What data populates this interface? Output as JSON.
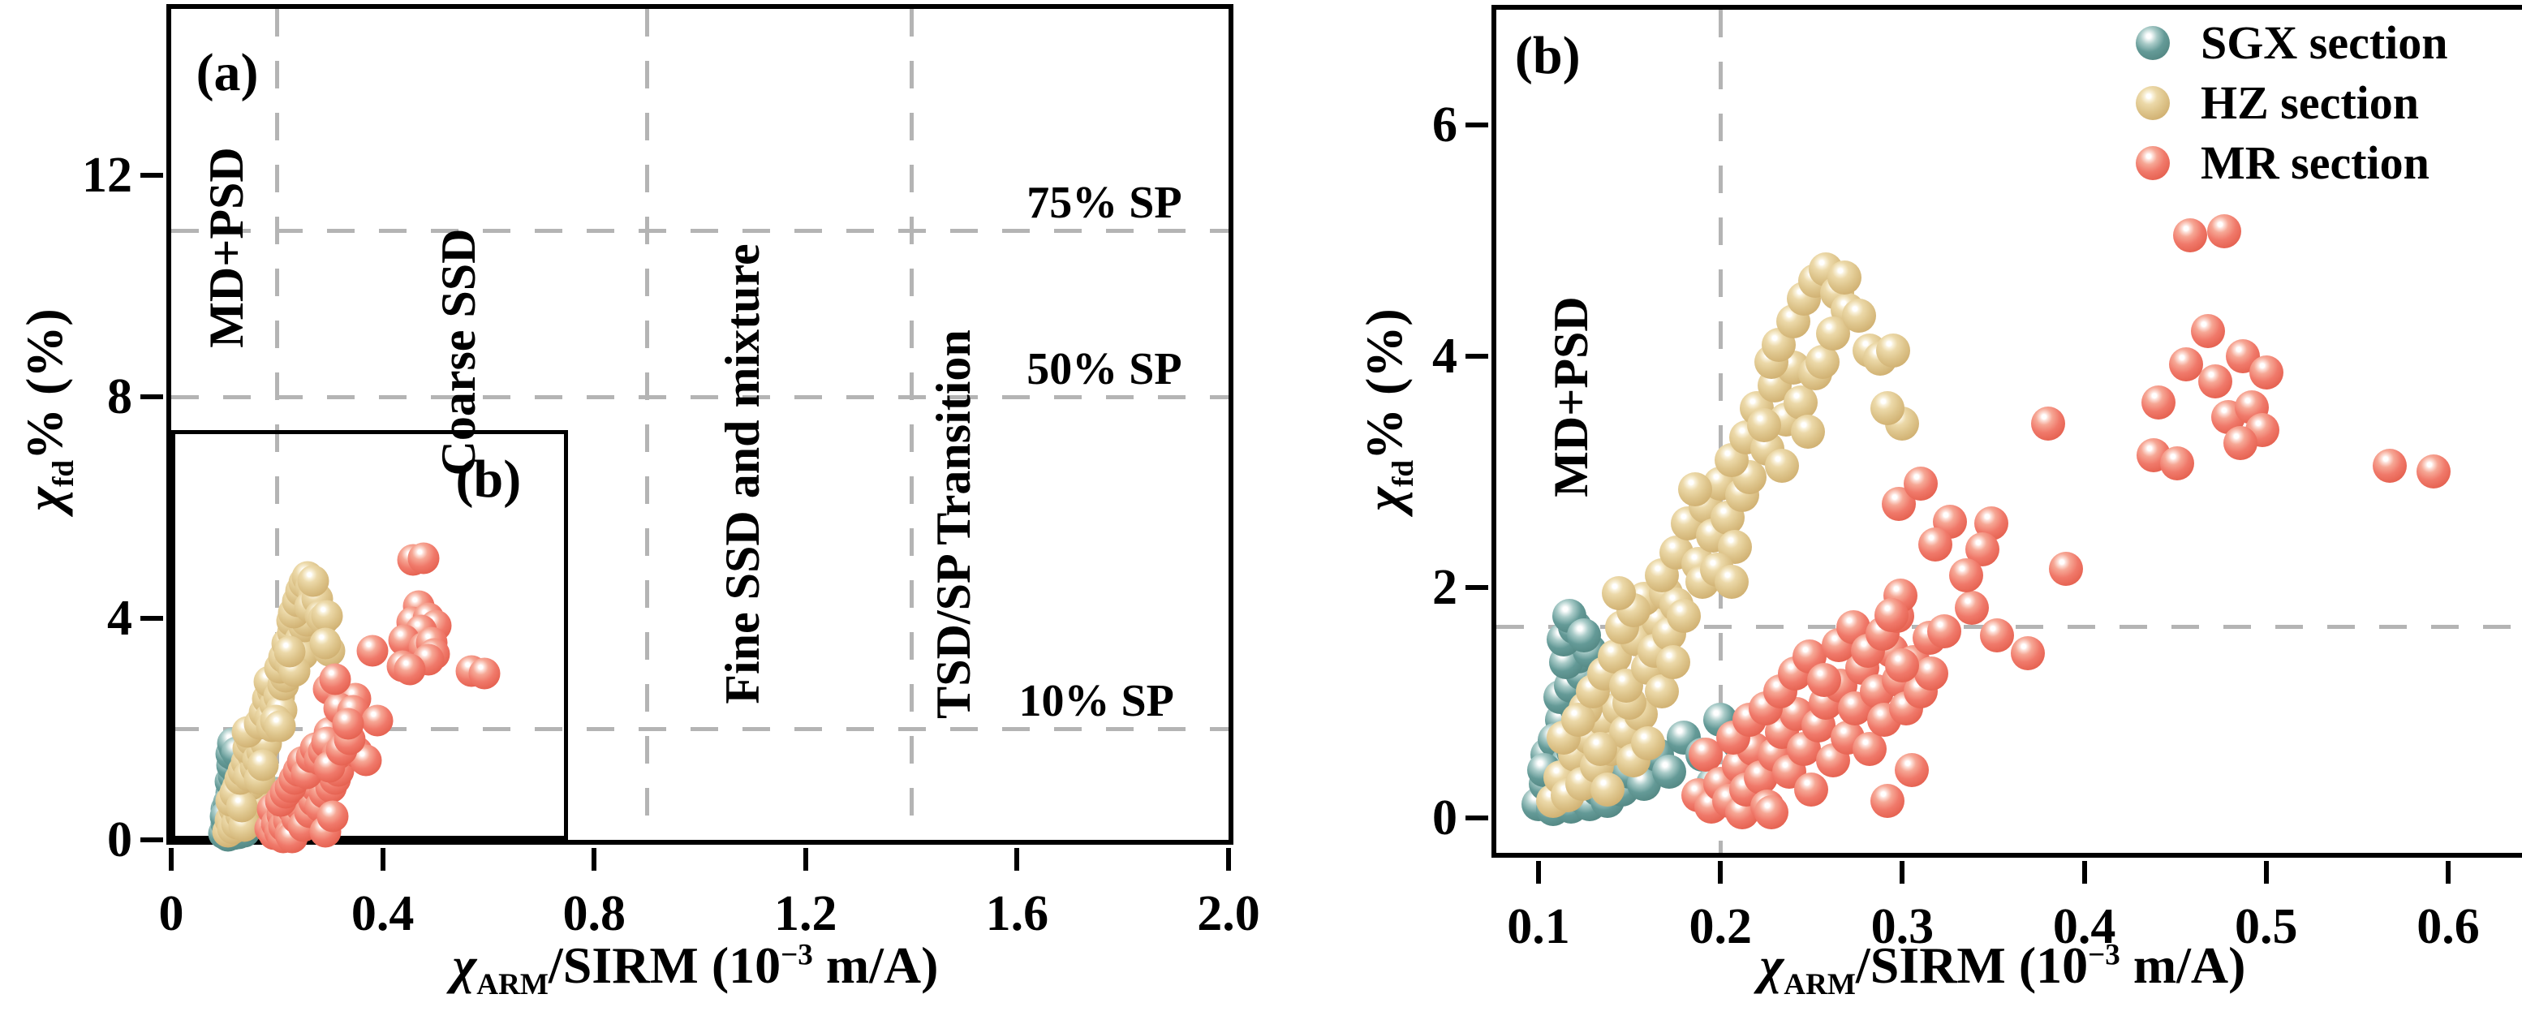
{
  "figure": {
    "type_note": "two-panel scatter figure, panel b is zoom of inset box in panel a",
    "colors": {
      "frame": "#000000",
      "dashed_line": "#b4b4b4",
      "background": "#ffffff"
    }
  },
  "chart_data": {
    "type": "scatter",
    "xlabel": {
      "chi": "χ",
      "sub": "ARM",
      "mid": "/SIRM (10",
      "sup": "−3",
      "end": " m/A)"
    },
    "ylabel": {
      "chi": "χ",
      "sub": "fd",
      "end": "% (%)"
    },
    "legend": {
      "position": "top-right of panel b",
      "entries": [
        {
          "key": "sgx",
          "label": "SGX section",
          "color": "#649a97"
        },
        {
          "key": "hz",
          "label": "HZ section",
          "color": "#dec58c"
        },
        {
          "key": "mr",
          "label": "MR section",
          "color": "#f0796a"
        }
      ]
    },
    "series": [
      {
        "key": "sgx",
        "name": "SGX section",
        "color": "#649a97",
        "points": [
          [
            0.1,
            0.12
          ],
          [
            0.104,
            0.3
          ],
          [
            0.108,
            0.08
          ],
          [
            0.11,
            0.45
          ],
          [
            0.112,
            0.22
          ],
          [
            0.115,
            0.6
          ],
          [
            0.118,
            0.1
          ],
          [
            0.118,
            0.38
          ],
          [
            0.12,
            0.75
          ],
          [
            0.122,
            0.2
          ],
          [
            0.124,
            0.52
          ],
          [
            0.126,
            0.9
          ],
          [
            0.127,
            0.33
          ],
          [
            0.128,
            0.12
          ],
          [
            0.13,
            0.64
          ],
          [
            0.132,
            0.42
          ],
          [
            0.133,
            0.25
          ],
          [
            0.135,
            0.8
          ],
          [
            0.136,
            0.55
          ],
          [
            0.138,
            0.15
          ],
          [
            0.14,
            0.35
          ],
          [
            0.142,
            0.68
          ],
          [
            0.144,
            0.48
          ],
          [
            0.146,
            0.25
          ],
          [
            0.148,
            0.58
          ],
          [
            0.15,
            0.4
          ],
          [
            0.105,
            0.55
          ],
          [
            0.113,
            0.85
          ],
          [
            0.121,
            0.95
          ],
          [
            0.109,
            0.68
          ],
          [
            0.116,
            0.48
          ],
          [
            0.125,
            0.7
          ],
          [
            0.131,
            0.95
          ],
          [
            0.137,
            0.92
          ],
          [
            0.103,
            0.42
          ],
          [
            0.119,
            0.58
          ],
          [
            0.112,
            1.05
          ],
          [
            0.118,
            1.15
          ],
          [
            0.124,
            1.25
          ],
          [
            0.13,
            1.1
          ],
          [
            0.136,
            1.3
          ],
          [
            0.122,
            1.4
          ],
          [
            0.115,
            1.35
          ],
          [
            0.128,
            1.45
          ],
          [
            0.134,
            1.18
          ],
          [
            0.141,
            1.05
          ],
          [
            0.114,
            1.55
          ],
          [
            0.12,
            1.65
          ],
          [
            0.117,
            1.75
          ],
          [
            0.125,
            1.58
          ],
          [
            0.158,
            0.3
          ],
          [
            0.165,
            0.55
          ],
          [
            0.172,
            0.4
          ],
          [
            0.18,
            0.7
          ],
          [
            0.19,
            0.55
          ],
          [
            0.2,
            0.85
          ],
          [
            0.21,
            0.65
          ],
          [
            0.196,
            0.3
          ]
        ]
      },
      {
        "key": "hz",
        "name": "HZ section",
        "color": "#dec58c",
        "points": [
          [
            0.108,
            0.15
          ],
          [
            0.112,
            0.35
          ],
          [
            0.116,
            0.2
          ],
          [
            0.12,
            0.55
          ],
          [
            0.124,
            0.3
          ],
          [
            0.128,
            0.7
          ],
          [
            0.132,
            0.45
          ],
          [
            0.136,
            0.85
          ],
          [
            0.14,
            0.6
          ],
          [
            0.144,
            0.95
          ],
          [
            0.148,
            0.75
          ],
          [
            0.152,
            0.5
          ],
          [
            0.156,
            0.9
          ],
          [
            0.16,
            0.65
          ],
          [
            0.114,
            0.7
          ],
          [
            0.126,
            0.95
          ],
          [
            0.138,
            0.25
          ],
          [
            0.15,
            1.0
          ],
          [
            0.122,
            0.85
          ],
          [
            0.134,
            0.6
          ],
          [
            0.13,
            1.1
          ],
          [
            0.136,
            1.25
          ],
          [
            0.142,
            1.4
          ],
          [
            0.148,
            1.15
          ],
          [
            0.154,
            1.55
          ],
          [
            0.16,
            1.3
          ],
          [
            0.166,
            1.7
          ],
          [
            0.158,
            1.9
          ],
          [
            0.146,
            1.65
          ],
          [
            0.152,
            1.8
          ],
          [
            0.164,
            1.45
          ],
          [
            0.17,
            1.95
          ],
          [
            0.172,
            1.6
          ],
          [
            0.176,
            1.85
          ],
          [
            0.168,
            1.1
          ],
          [
            0.18,
            1.75
          ],
          [
            0.144,
            1.95
          ],
          [
            0.174,
            1.35
          ],
          [
            0.168,
            2.1
          ],
          [
            0.176,
            2.3
          ],
          [
            0.182,
            2.55
          ],
          [
            0.188,
            2.2
          ],
          [
            0.192,
            2.7
          ],
          [
            0.196,
            2.45
          ],
          [
            0.2,
            2.9
          ],
          [
            0.186,
            2.85
          ],
          [
            0.204,
            2.6
          ],
          [
            0.208,
            2.35
          ],
          [
            0.212,
            2.8
          ],
          [
            0.19,
            2.05
          ],
          [
            0.216,
            2.95
          ],
          [
            0.198,
            2.15
          ],
          [
            0.206,
            2.05
          ],
          [
            0.206,
            3.1
          ],
          [
            0.214,
            3.3
          ],
          [
            0.22,
            3.55
          ],
          [
            0.226,
            3.2
          ],
          [
            0.23,
            3.75
          ],
          [
            0.236,
            3.45
          ],
          [
            0.24,
            3.9
          ],
          [
            0.228,
            3.95
          ],
          [
            0.244,
            3.6
          ],
          [
            0.248,
            3.35
          ],
          [
            0.252,
            3.85
          ],
          [
            0.234,
            3.05
          ],
          [
            0.224,
            3.4
          ],
          [
            0.256,
            3.95
          ],
          [
            0.232,
            4.1
          ],
          [
            0.24,
            4.3
          ],
          [
            0.246,
            4.5
          ],
          [
            0.252,
            4.65
          ],
          [
            0.258,
            4.75
          ],
          [
            0.264,
            4.55
          ],
          [
            0.27,
            4.4
          ],
          [
            0.262,
            4.2
          ],
          [
            0.276,
            4.35
          ],
          [
            0.282,
            4.05
          ],
          [
            0.268,
            4.68
          ],
          [
            0.288,
            3.98
          ],
          [
            0.295,
            4.05
          ],
          [
            0.3,
            3.42
          ],
          [
            0.292,
            3.55
          ]
        ]
      },
      {
        "key": "mr",
        "name": "MR section",
        "color": "#f0796a",
        "points": [
          [
            0.188,
            0.2
          ],
          [
            0.192,
            0.55
          ],
          [
            0.195,
            0.1
          ],
          [
            0.2,
            0.3
          ],
          [
            0.205,
            0.15
          ],
          [
            0.21,
            0.45
          ],
          [
            0.212,
            0.05
          ],
          [
            0.214,
            0.25
          ],
          [
            0.218,
            0.6
          ],
          [
            0.222,
            0.35
          ],
          [
            0.226,
            0.1
          ],
          [
            0.228,
            0.05
          ],
          [
            0.23,
            0.55
          ],
          [
            0.234,
            0.75
          ],
          [
            0.238,
            0.4
          ],
          [
            0.242,
            0.9
          ],
          [
            0.246,
            0.6
          ],
          [
            0.25,
            0.25
          ],
          [
            0.254,
            0.8
          ],
          [
            0.258,
            1.0
          ],
          [
            0.262,
            0.5
          ],
          [
            0.266,
            1.15
          ],
          [
            0.27,
            0.7
          ],
          [
            0.274,
            0.95
          ],
          [
            0.278,
            1.3
          ],
          [
            0.282,
            0.6
          ],
          [
            0.286,
            1.1
          ],
          [
            0.29,
            0.85
          ],
          [
            0.294,
            1.45
          ],
          [
            0.298,
            1.2
          ],
          [
            0.302,
            0.95
          ],
          [
            0.306,
            1.35
          ],
          [
            0.31,
            1.1
          ],
          [
            0.316,
            1.25
          ],
          [
            0.207,
            0.7
          ],
          [
            0.216,
            0.85
          ],
          [
            0.225,
            0.95
          ],
          [
            0.233,
            1.1
          ],
          [
            0.241,
            1.25
          ],
          [
            0.249,
            1.4
          ],
          [
            0.257,
            1.2
          ],
          [
            0.265,
            1.5
          ],
          [
            0.273,
            1.65
          ],
          [
            0.281,
            1.45
          ],
          [
            0.289,
            1.6
          ],
          [
            0.297,
            1.75
          ],
          [
            0.292,
            0.15
          ],
          [
            0.305,
            0.42
          ],
          [
            0.299,
            1.93
          ],
          [
            0.294,
            1.76
          ],
          [
            0.315,
            1.56
          ],
          [
            0.352,
            1.58
          ],
          [
            0.369,
            1.43
          ],
          [
            0.3,
            1.32
          ],
          [
            0.323,
            1.62
          ],
          [
            0.338,
            1.82
          ],
          [
            0.298,
            2.72
          ],
          [
            0.326,
            2.57
          ],
          [
            0.349,
            2.55
          ],
          [
            0.318,
            2.37
          ],
          [
            0.344,
            2.33
          ],
          [
            0.39,
            2.16
          ],
          [
            0.31,
            2.9
          ],
          [
            0.335,
            2.1
          ],
          [
            0.38,
            3.42
          ],
          [
            0.468,
            4.22
          ],
          [
            0.456,
            3.93
          ],
          [
            0.487,
            4.0
          ],
          [
            0.5,
            3.86
          ],
          [
            0.472,
            3.78
          ],
          [
            0.441,
            3.6
          ],
          [
            0.479,
            3.47
          ],
          [
            0.492,
            3.56
          ],
          [
            0.498,
            3.36
          ],
          [
            0.486,
            3.25
          ],
          [
            0.438,
            3.14
          ],
          [
            0.451,
            3.07
          ],
          [
            0.458,
            5.05
          ],
          [
            0.477,
            5.08
          ],
          [
            0.568,
            3.05
          ],
          [
            0.592,
            3.0
          ]
        ]
      }
    ],
    "panels": [
      {
        "id": "a",
        "xlim": [
          0,
          2.0
        ],
        "ylim": [
          0,
          15
        ],
        "x_ticks": {
          "values": [
            0,
            0.4,
            0.8,
            1.2,
            1.6,
            2.0
          ],
          "labels": [
            "0",
            "0.4",
            "0.8",
            "1.2",
            "1.6",
            "2.0"
          ]
        },
        "y_ticks": {
          "values": [
            0,
            4,
            8,
            12
          ],
          "labels": [
            "0",
            "4",
            "8",
            "12"
          ]
        },
        "v_dashed": [
          0.2,
          0.9,
          1.4
        ],
        "h_dashed": [
          {
            "y": 11
          },
          {
            "y": 8
          },
          {
            "y": 2
          }
        ],
        "inset_box": {
          "x0": 0,
          "y0": 0,
          "x1": 0.75,
          "y1": 7.4
        },
        "marker_px": 39,
        "annotations": [
          {
            "text": "(a)",
            "x": 0.106,
            "y": 13.85,
            "cls": "panel-letter",
            "name": "panel-letter-a"
          },
          {
            "text": "MD+PSD",
            "x": 0.104,
            "y": 10.7,
            "rot": -90,
            "name": "zone-label-md-psd"
          },
          {
            "text": "Coarse SSD",
            "x": 0.543,
            "y": 8.8,
            "rot": -90,
            "name": "zone-label-coarse-ssd"
          },
          {
            "text": "Fine SSD and mixture",
            "x": 1.08,
            "y": 6.6,
            "rot": -90,
            "name": "zone-label-fine-ssd-mixture"
          },
          {
            "text": "TSD/SP Transition",
            "x": 1.48,
            "y": 5.7,
            "rot": -90,
            "name": "zone-label-tsd-sp-transition"
          },
          {
            "text": "75% SP",
            "x": 1.765,
            "y": 11.5,
            "cls": "sp",
            "name": "sp-label-75"
          },
          {
            "text": "50% SP",
            "x": 1.765,
            "y": 8.5,
            "cls": "sp",
            "name": "sp-label-50"
          },
          {
            "text": "10% SP",
            "x": 1.75,
            "y": 2.5,
            "cls": "sp",
            "name": "sp-label-10"
          },
          {
            "text": "(b)",
            "x": 0.6,
            "y": 6.5,
            "cls": "panel-letter",
            "name": "inset-label-b"
          }
        ]
      },
      {
        "id": "b",
        "xlim": [
          0.0768,
          0.6415
        ],
        "ylim": [
          -0.3,
          7.0
        ],
        "x_ticks": {
          "values": [
            0.1,
            0.2,
            0.3,
            0.4,
            0.5,
            0.6
          ],
          "labels": [
            "0.1",
            "0.2",
            "0.3",
            "0.4",
            "0.5",
            "0.6"
          ]
        },
        "y_ticks": {
          "values": [
            0,
            2,
            4,
            6
          ],
          "labels": [
            "0",
            "2",
            "4",
            "6"
          ]
        },
        "v_dashed": [
          0.2
        ],
        "h_dashed": [
          {
            "y": 1.66
          }
        ],
        "inset_box": null,
        "marker_px": 42,
        "annotations": [
          {
            "text": "(b)",
            "x": 0.105,
            "y": 6.6,
            "cls": "panel-letter",
            "name": "panel-letter-b"
          },
          {
            "text": "MD+PSD",
            "x": 0.118,
            "y": 3.65,
            "rot": -90,
            "name": "zone-label-md-psd"
          }
        ]
      }
    ]
  }
}
